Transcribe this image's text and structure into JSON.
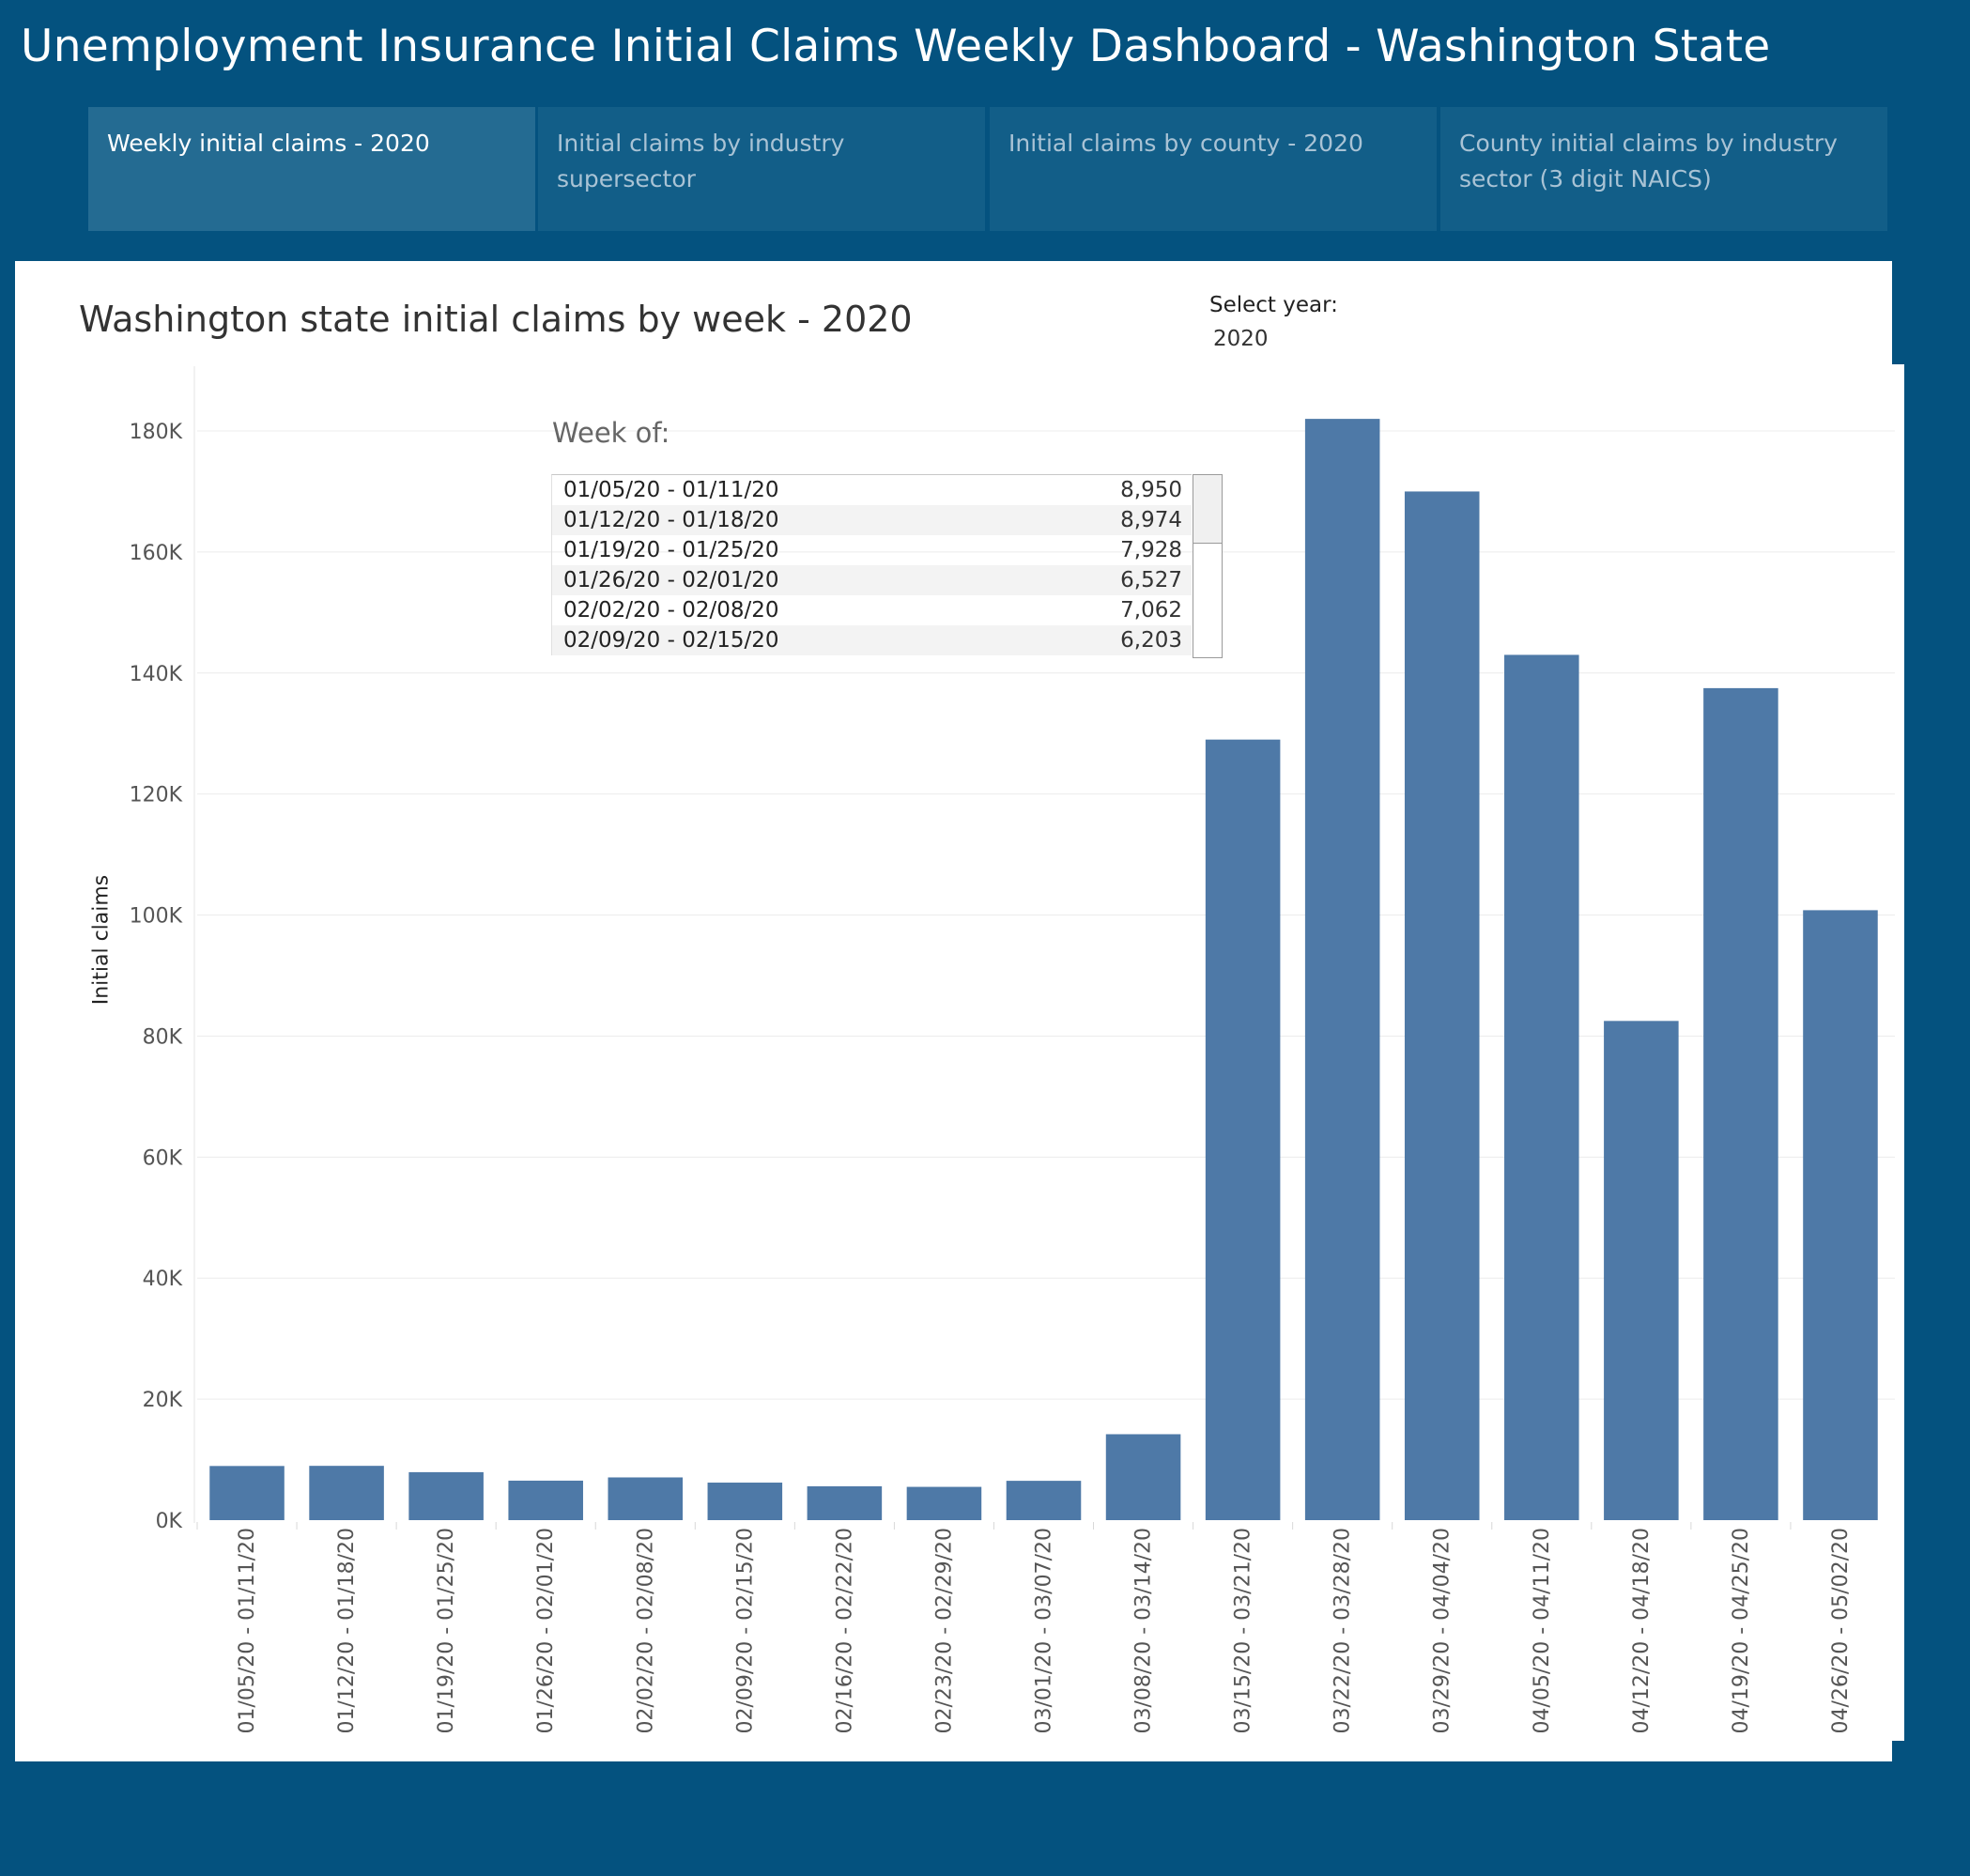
{
  "app_title": "Unemployment Insurance Initial Claims Weekly Dashboard  - Washington State",
  "tabs": [
    {
      "label": "Weekly initial claims - 2020",
      "active": true
    },
    {
      "label": "Initial claims by industry supersector",
      "active": false
    },
    {
      "label": "Initial claims by county - 2020",
      "active": false
    },
    {
      "label": " County initial claims by industry sector (3 digit NAICS)",
      "active": false
    }
  ],
  "filter": {
    "label": "Select year:",
    "value": "2020"
  },
  "tooltip": {
    "title": "Week of:",
    "rows": [
      {
        "week": "01/05/20 - 01/11/20",
        "value": "8,950"
      },
      {
        "week": "01/12/20 - 01/18/20",
        "value": "8,974"
      },
      {
        "week": "01/19/20 - 01/25/20",
        "value": "7,928"
      },
      {
        "week": "01/26/20 - 02/01/20",
        "value": "6,527"
      },
      {
        "week": "02/02/20 - 02/08/20",
        "value": "7,062"
      },
      {
        "week": "02/09/20 - 02/15/20",
        "value": "6,203"
      }
    ]
  },
  "colors": {
    "background": "#04527f",
    "bar": "#4e79a7",
    "panel": "#ffffff"
  },
  "chart_data": {
    "type": "bar",
    "title": "Washington state initial claims by week - 2020",
    "xlabel": "",
    "ylabel": "Initial claims",
    "ylim": [
      0,
      180000
    ],
    "yticks": [
      0,
      20000,
      40000,
      60000,
      80000,
      100000,
      120000,
      140000,
      160000,
      180000
    ],
    "ytick_labels": [
      "0K",
      "20K",
      "40K",
      "60K",
      "80K",
      "100K",
      "120K",
      "140K",
      "160K",
      "180K"
    ],
    "grid": true,
    "categories": [
      "01/05/20 - 01/11/20",
      "01/12/20 - 01/18/20",
      "01/19/20 - 01/25/20",
      "01/26/20 - 02/01/20",
      "02/02/20 - 02/08/20",
      "02/09/20 - 02/15/20",
      "02/16/20 - 02/22/20",
      "02/23/20 - 02/29/20",
      "03/01/20 - 03/07/20",
      "03/08/20 - 03/14/20",
      "03/15/20 - 03/21/20",
      "03/22/20 - 03/28/20",
      "03/29/20 - 04/04/20",
      "04/05/20 - 04/11/20",
      "04/12/20 - 04/18/20",
      "04/19/20 - 04/25/20",
      "04/26/20 - 05/02/20"
    ],
    "values": [
      8950,
      8974,
      7928,
      6527,
      7062,
      6203,
      5600,
      5500,
      6500,
      14200,
      129000,
      182000,
      170000,
      143000,
      82500,
      137500,
      100800
    ]
  }
}
